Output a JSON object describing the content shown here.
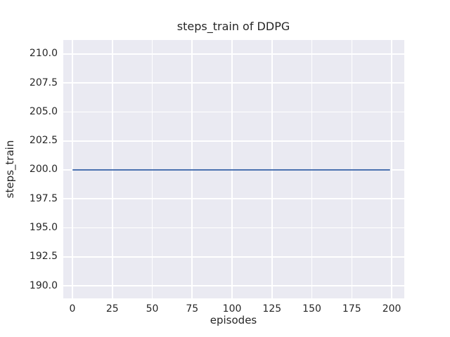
{
  "figure": {
    "background": "#ffffff"
  },
  "chart_data": {
    "type": "line",
    "title": "steps_train of DDPG",
    "xlabel": "episodes",
    "ylabel": "steps_train",
    "xlim": [
      -5.73,
      207.9
    ],
    "ylim": [
      188.91,
      211.21
    ],
    "grid": true,
    "legend_visible": false,
    "xticks": [
      {
        "value": 0,
        "label": "0"
      },
      {
        "value": 25,
        "label": "25"
      },
      {
        "value": 50,
        "label": "50"
      },
      {
        "value": 75,
        "label": "75"
      },
      {
        "value": 100,
        "label": "100"
      },
      {
        "value": 125,
        "label": "125"
      },
      {
        "value": 150,
        "label": "150"
      },
      {
        "value": 175,
        "label": "175"
      },
      {
        "value": 200,
        "label": "200"
      }
    ],
    "yticks": [
      {
        "value": 190.0,
        "label": "190.0"
      },
      {
        "value": 192.5,
        "label": "192.5"
      },
      {
        "value": 195.0,
        "label": "195.0"
      },
      {
        "value": 197.5,
        "label": "197.5"
      },
      {
        "value": 200.0,
        "label": "200.0"
      },
      {
        "value": 202.5,
        "label": "202.5"
      },
      {
        "value": 205.0,
        "label": "205.0"
      },
      {
        "value": 207.5,
        "label": "207.5"
      },
      {
        "value": 210.0,
        "label": "210.0"
      }
    ],
    "series": [
      {
        "name": "steps_train",
        "color": "#4c72b0",
        "x": [
          0,
          199
        ],
        "y": [
          200,
          200
        ]
      }
    ],
    "colors": {
      "plot_background": "#eaeaf2",
      "grid": "#ffffff",
      "text": "#262626"
    }
  }
}
